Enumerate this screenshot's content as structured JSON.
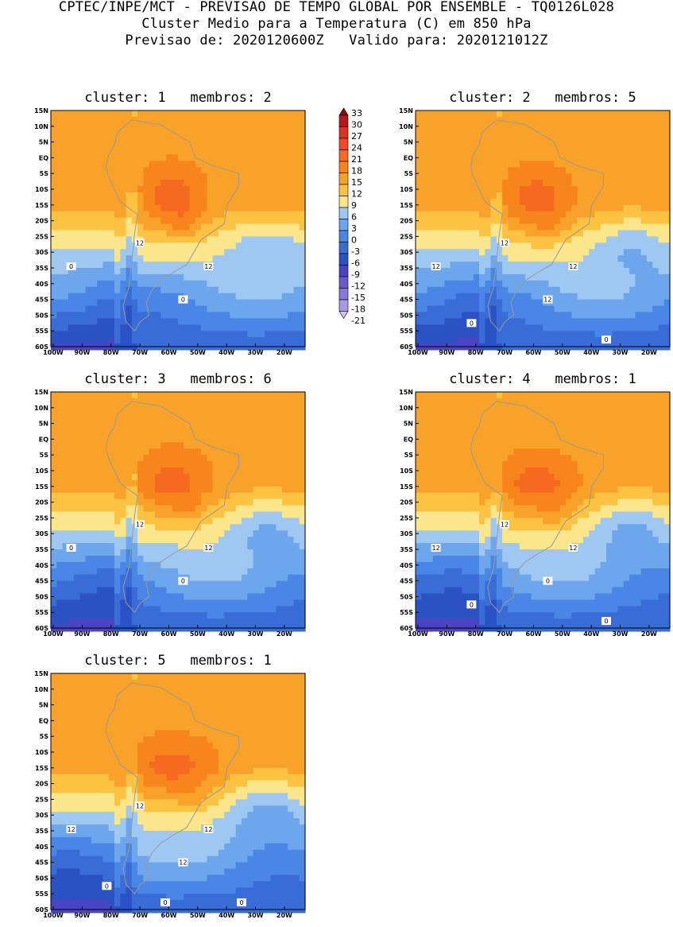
{
  "header": {
    "line1": "CPTEC/INPE/MCT - PREVISAO DE TEMPO GLOBAL POR ENSEMBLE - TQ0126L028",
    "line2": "Cluster Medio para a Temperatura (C) em 850 hPa",
    "line3": "Previsao de: 2020120600Z   Valido para: 2020121012Z"
  },
  "axes": {
    "lat_labels": [
      "15N",
      "10N",
      "5N",
      "EQ",
      "5S",
      "10S",
      "15S",
      "20S",
      "25S",
      "30S",
      "35S",
      "40S",
      "45S",
      "50S",
      "55S",
      "60S"
    ],
    "lon_labels": [
      "100W",
      "90W",
      "80W",
      "70W",
      "60W",
      "50W",
      "40W",
      "30W",
      "20W"
    ]
  },
  "colorbar": {
    "labels": [
      "33",
      "30",
      "27",
      "24",
      "21",
      "18",
      "15",
      "12",
      "9",
      "6",
      "3",
      "0",
      "-3",
      "-6",
      "-9",
      "-12",
      "-15",
      "-18",
      "-21"
    ],
    "colors": [
      "#8c0a10",
      "#b5181e",
      "#d83528",
      "#ef4a25",
      "#f56a20",
      "#f8851c",
      "#f8a22a",
      "#fcc242",
      "#fbe68c",
      "#9ec8f2",
      "#6ea6ee",
      "#4a86e6",
      "#3a6cd8",
      "#2a52c4",
      "#4a44c4",
      "#6a5ad0",
      "#8878d8",
      "#a89ae2",
      "#cfc4f0"
    ]
  },
  "panels": [
    {
      "title": "cluster: 1   membros: 2",
      "variant": 1,
      "contour_labels": [
        "12",
        "12",
        "0",
        "0"
      ]
    },
    {
      "title": "cluster: 2   membros: 5",
      "variant": 2,
      "contour_labels": [
        "12",
        "12",
        "12",
        "12",
        "0",
        "0"
      ]
    },
    {
      "title": "cluster: 3   membros: 6",
      "variant": 3,
      "contour_labels": [
        "12",
        "12",
        "0",
        "0"
      ]
    },
    {
      "title": "cluster: 4   membros: 1",
      "variant": 4,
      "contour_labels": [
        "12",
        "12",
        "12",
        "0",
        "0",
        "0"
      ]
    },
    {
      "title": "cluster: 5   membros: 1",
      "variant": 5,
      "contour_labels": [
        "12",
        "12",
        "12",
        "12",
        "0",
        "0",
        "0"
      ]
    }
  ]
}
